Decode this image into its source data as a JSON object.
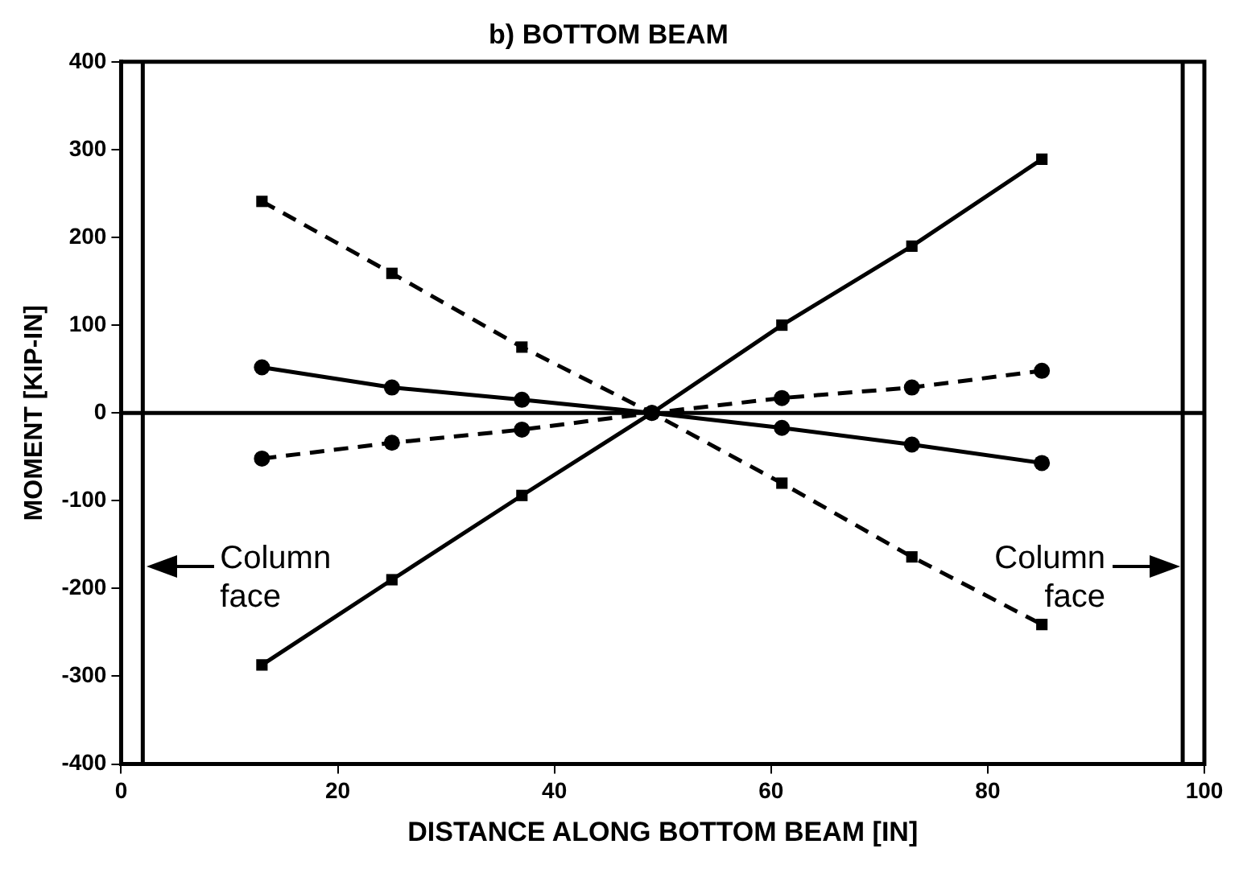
{
  "chart_data": {
    "type": "line",
    "title": "b) BOTTOM BEAM",
    "xlabel": "DISTANCE ALONG BOTTOM BEAM [IN]",
    "ylabel": "MOMENT [KIP-IN]",
    "x": [
      13,
      25,
      37,
      49,
      61,
      73,
      85
    ],
    "series": [
      {
        "color": "#000000",
        "marker": "square",
        "line_style": "solid",
        "values": [
          -287,
          -190,
          -94,
          0,
          100,
          190,
          289
        ]
      },
      {
        "color": "#000000",
        "marker": "square",
        "line_style": "dashed",
        "values": [
          241,
          159,
          75,
          0,
          -80,
          -164,
          -241
        ]
      },
      {
        "color": "#000000",
        "marker": "circle",
        "line_style": "solid",
        "values": [
          52,
          29,
          15,
          0,
          -17,
          -36,
          -57
        ]
      },
      {
        "color": "#000000",
        "marker": "circle",
        "line_style": "dashed",
        "values": [
          -52,
          -34,
          -19,
          0,
          17,
          29,
          48
        ]
      }
    ],
    "xlim": [
      0,
      100
    ],
    "xticks": [
      0,
      20,
      40,
      60,
      80,
      100
    ],
    "ylim": [
      -400,
      400
    ],
    "yticks": [
      -400,
      -300,
      -200,
      -100,
      0,
      100,
      200,
      300,
      400
    ],
    "ref_lines": [
      {
        "axis": "y",
        "value": 0
      },
      {
        "axis": "x",
        "value": 2,
        "label": "Column face"
      },
      {
        "axis": "x",
        "value": 98,
        "label": "Column face"
      }
    ],
    "grid": false,
    "legend": false
  }
}
